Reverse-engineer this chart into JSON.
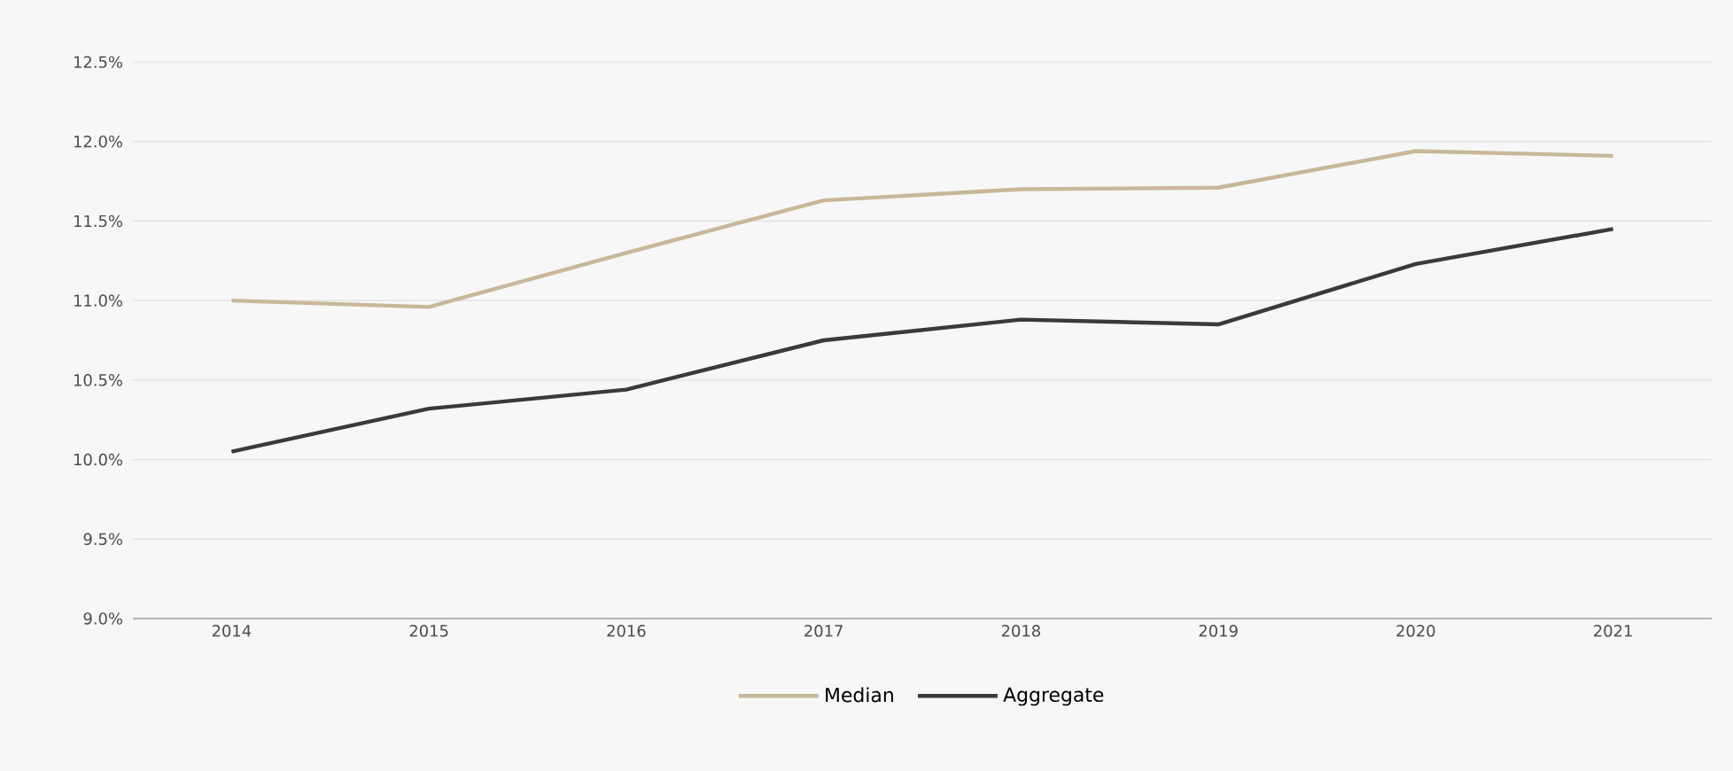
{
  "chart_data": {
    "type": "line",
    "categories": [
      "2014",
      "2015",
      "2016",
      "2017",
      "2018",
      "2019",
      "2020",
      "2021"
    ],
    "series": [
      {
        "name": "Median",
        "color": "#c8b89a",
        "values": [
          11.0,
          10.96,
          11.3,
          11.63,
          11.7,
          11.71,
          11.94,
          11.91
        ]
      },
      {
        "name": "Aggregate",
        "color": "#3a3a3a",
        "values": [
          10.05,
          10.32,
          10.44,
          10.75,
          10.88,
          10.85,
          11.23,
          11.45
        ]
      }
    ],
    "ylim": [
      9.0,
      12.5
    ],
    "yticks": [
      {
        "value": 9.0,
        "label": "9.0%"
      },
      {
        "value": 9.5,
        "label": "9.5%"
      },
      {
        "value": 10.0,
        "label": "10.0%"
      },
      {
        "value": 10.5,
        "label": "10.5%"
      },
      {
        "value": 11.0,
        "label": "11.0%"
      },
      {
        "value": 11.5,
        "label": "11.5%"
      },
      {
        "value": 12.0,
        "label": "12.0%"
      },
      {
        "value": 12.5,
        "label": "12.5%"
      }
    ],
    "grid": "y",
    "legend": "bottom"
  }
}
